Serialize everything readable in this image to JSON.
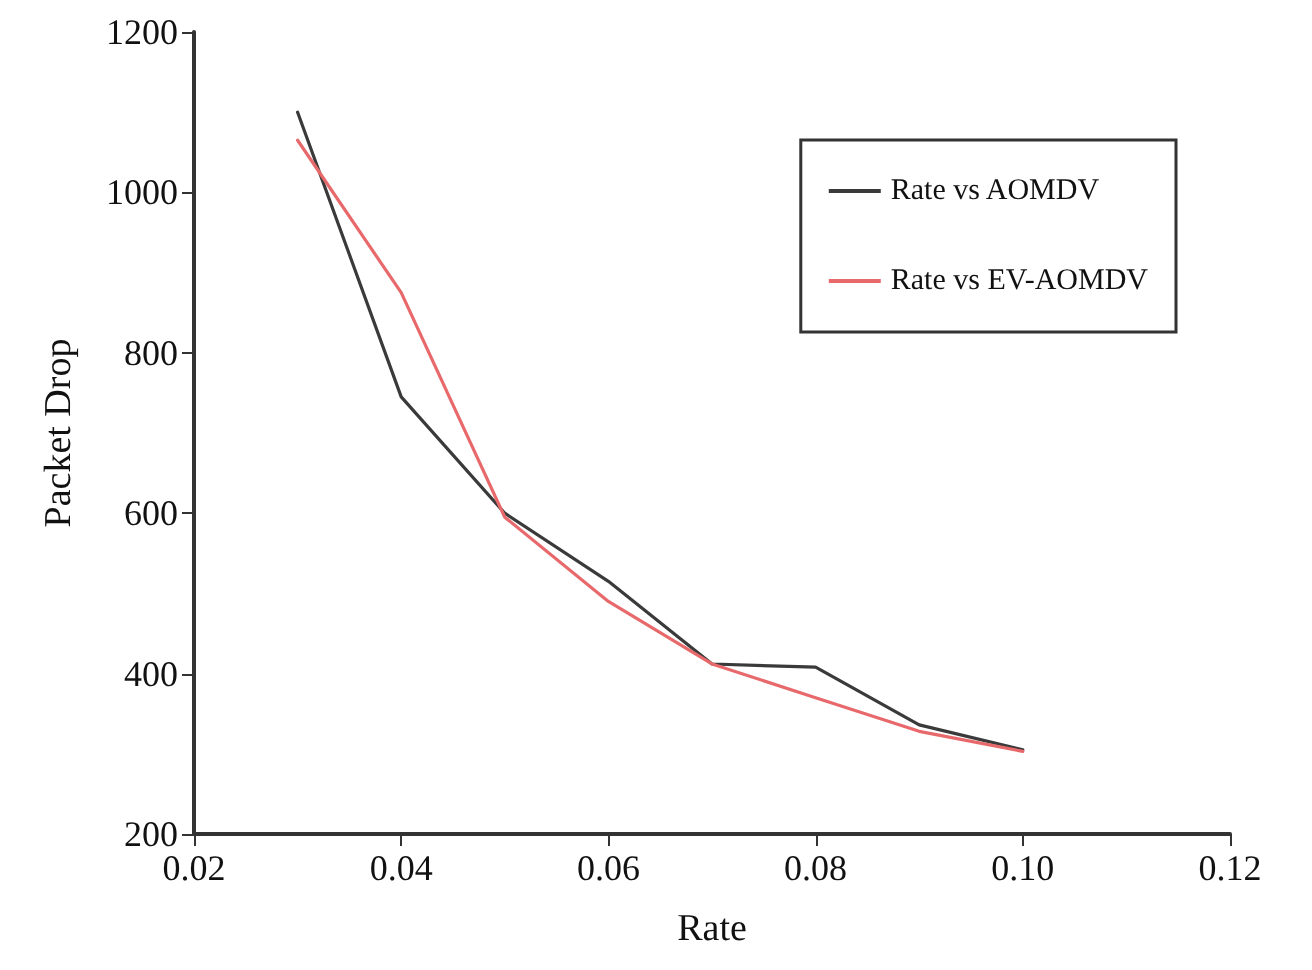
{
  "chart_data": {
    "type": "line",
    "xlabel": "Rate",
    "ylabel": "Packet Drop",
    "x": [
      0.03,
      0.04,
      0.05,
      0.06,
      0.07,
      0.08,
      0.09,
      0.1
    ],
    "series": [
      {
        "name": "Rate vs AOMDV",
        "color": "#3a3a3a",
        "values": [
          1100,
          745,
          600,
          515,
          412,
          408,
          336,
          305
        ]
      },
      {
        "name": "Rate vs EV-AOMDV",
        "color": "#e8696b",
        "values": [
          1065,
          875,
          595,
          490,
          412,
          370,
          328,
          303
        ]
      }
    ],
    "xlim": [
      0.02,
      0.12
    ],
    "xticks": [
      0.02,
      0.04,
      0.06,
      0.08,
      {
        "value": 0.1,
        "label": "0.10"
      },
      0.12
    ],
    "ylim": [
      200,
      1200
    ],
    "yticks": [
      200,
      400,
      600,
      800,
      1000,
      1200
    ],
    "grid": false,
    "legend": "top right",
    "marker": "none",
    "line_style": "solid"
  }
}
